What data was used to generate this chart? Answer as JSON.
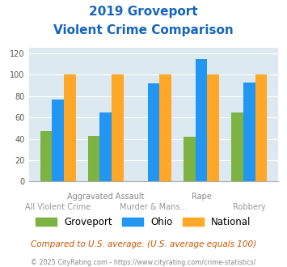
{
  "title_line1": "2019 Groveport",
  "title_line2": "Violent Crime Comparison",
  "cat_labels_top": [
    "",
    "Aggravated Assault",
    "",
    "Rape",
    ""
  ],
  "cat_labels_bot": [
    "All Violent Crime",
    "",
    "Murder & Mans...",
    "",
    "Robbery"
  ],
  "groveport": [
    47,
    43,
    0,
    42,
    65
  ],
  "ohio": [
    77,
    65,
    92,
    115,
    93
  ],
  "national": [
    100,
    100,
    100,
    100,
    100
  ],
  "groveport_color": "#7cb342",
  "ohio_color": "#2196f3",
  "national_color": "#ffa726",
  "ylim": [
    0,
    125
  ],
  "yticks": [
    0,
    20,
    40,
    60,
    80,
    100,
    120
  ],
  "plot_bg": "#dce9f0",
  "title_color": "#1565c0",
  "footer_text": "Compared to U.S. average. (U.S. average equals 100)",
  "footer_color": "#cc5500",
  "copyright_text": "© 2025 CityRating.com - https://www.cityrating.com/crime-statistics/",
  "copyright_color": "#888888",
  "legend_labels": [
    "Groveport",
    "Ohio",
    "National"
  ],
  "bar_width": 0.25
}
